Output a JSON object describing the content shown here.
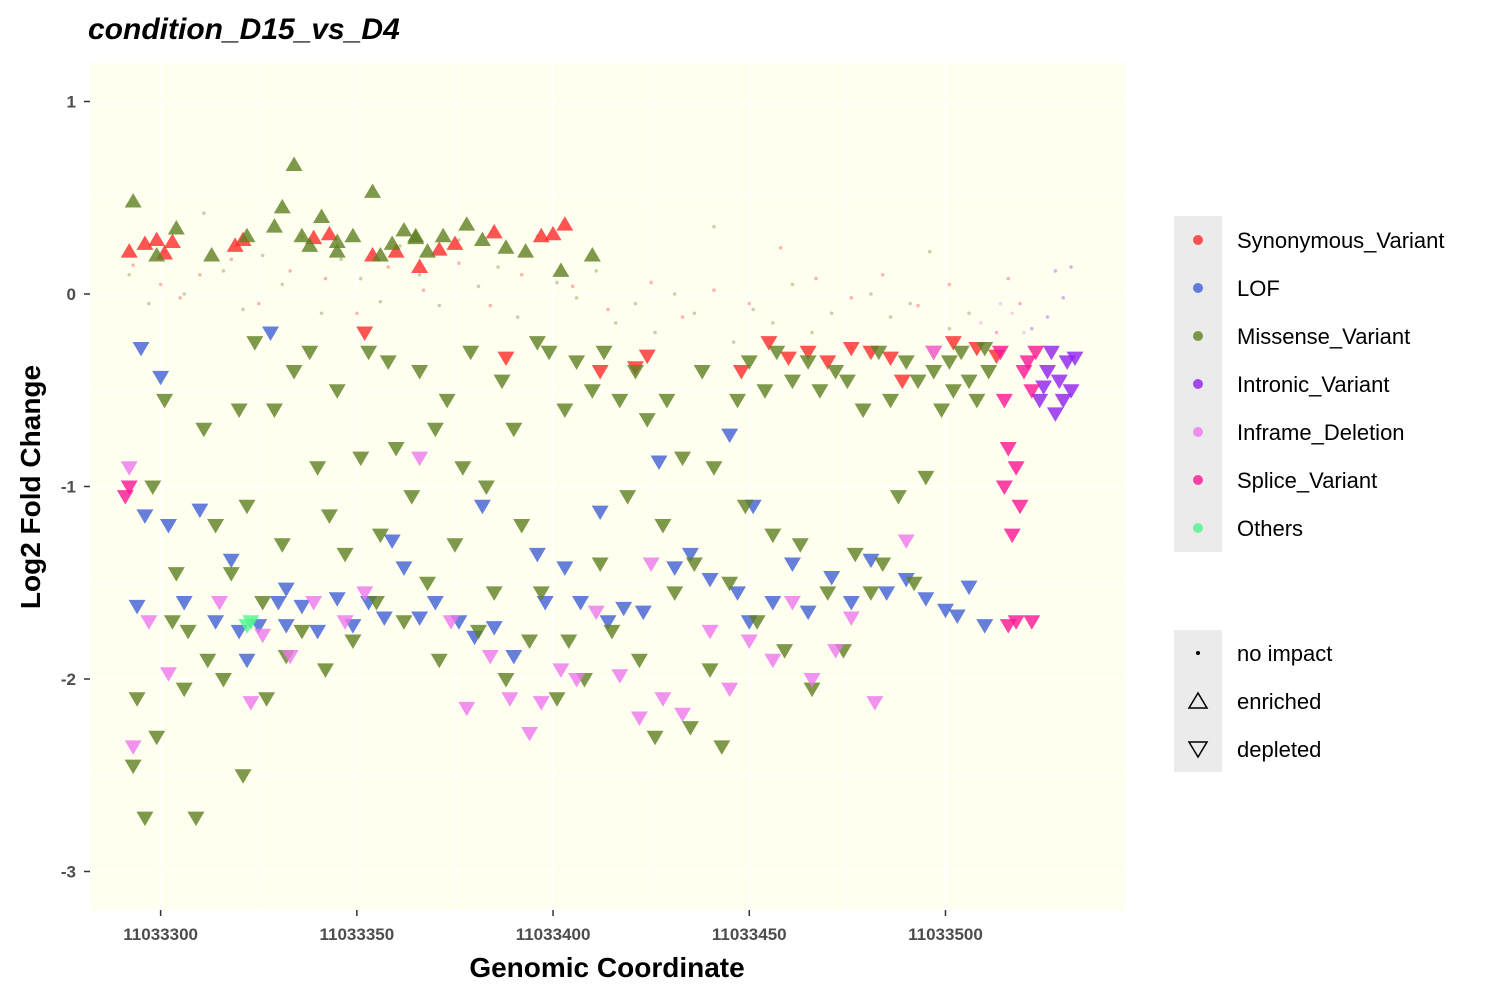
{
  "chart_data": {
    "type": "scatter",
    "title": "condition_D15_vs_D4",
    "xlabel": "Genomic Coordinate",
    "ylabel": "Log2 Fold Change",
    "xlim": [
      11033282,
      11033546
    ],
    "ylim": [
      -3.2,
      1.2
    ],
    "x_ticks": [
      11033300,
      11033350,
      11033400,
      11033450,
      11033500
    ],
    "y_ticks": [
      1,
      0,
      -1,
      -2,
      -3
    ],
    "grid": true,
    "panel_background": "#fffff0",
    "legend_position": "right",
    "categories": [
      {
        "name": "Synonymous_Variant",
        "color": "#ff2a2a"
      },
      {
        "name": "LOF",
        "color": "#3f5fd6"
      },
      {
        "name": "Missense_Variant",
        "color": "#5f7f22"
      },
      {
        "name": "Intronic_Variant",
        "color": "#8f1ff0"
      },
      {
        "name": "Inframe_Deletion",
        "color": "#ee78ee"
      },
      {
        "name": "Splice_Variant",
        "color": "#ff1493"
      },
      {
        "name": "Others",
        "color": "#4ff58f"
      }
    ],
    "shapes": [
      {
        "name": "no impact",
        "marker": "dot"
      },
      {
        "name": "enriched",
        "marker": "triangle-up"
      },
      {
        "name": "depleted",
        "marker": "triangle-down"
      }
    ],
    "series": [
      {
        "name": "Synonymous_Variant",
        "shape": "enriched",
        "x": [
          11033292,
          11033296,
          11033299,
          11033301,
          11033303,
          11033319,
          11033321,
          11033339,
          11033343,
          11033354,
          11033360,
          11033366,
          11033371,
          11033375,
          11033385,
          11033397,
          11033400,
          11033403
        ],
        "y": [
          0.22,
          0.26,
          0.28,
          0.21,
          0.27,
          0.25,
          0.28,
          0.29,
          0.31,
          0.2,
          0.22,
          0.14,
          0.23,
          0.26,
          0.32,
          0.3,
          0.31,
          0.36
        ]
      },
      {
        "name": "Synonymous_Variant",
        "shape": "depleted",
        "x": [
          11033352,
          11033388,
          11033412,
          11033421,
          11033424,
          11033448,
          11033455,
          11033460,
          11033465,
          11033470,
          11033476,
          11033481,
          11033486,
          11033489,
          11033497,
          11033502,
          11033508,
          11033513
        ],
        "y": [
          -0.2,
          -0.33,
          -0.4,
          -0.38,
          -0.32,
          -0.4,
          -0.25,
          -0.33,
          -0.3,
          -0.35,
          -0.28,
          -0.3,
          -0.33,
          -0.45,
          -0.3,
          -0.25,
          -0.28,
          -0.32
        ]
      },
      {
        "name": "Synonymous_Variant",
        "shape": "no impact",
        "x": [
          11033293,
          11033300,
          11033305,
          11033310,
          11033318,
          11033325,
          11033333,
          11033342,
          11033350,
          11033358,
          11033367,
          11033376,
          11033384,
          11033392,
          11033405,
          11033414,
          11033425,
          11033433,
          11033441,
          11033450,
          11033458,
          11033467,
          11033476,
          11033484,
          11033493,
          11033501
        ],
        "y": [
          0.15,
          0.05,
          -0.02,
          0.1,
          0.18,
          -0.05,
          0.12,
          0.08,
          -0.1,
          0.14,
          0.02,
          0.16,
          -0.06,
          0.1,
          0.04,
          -0.08,
          0.06,
          -0.12,
          0.02,
          -0.05,
          0.24,
          0.08,
          -0.02,
          0.1,
          -0.06,
          0.05
        ]
      },
      {
        "name": "LOF",
        "shape": "depleted",
        "x": [
          11033294,
          11033296,
          11033302,
          11033306,
          11033310,
          11033314,
          11033318,
          11033322,
          11033325,
          11033328,
          11033332,
          11033336,
          11033340,
          11033345,
          11033349,
          11033353,
          11033357,
          11033362,
          11033366,
          11033370,
          11033376,
          11033380,
          11033385,
          11033390,
          11033396,
          11033398,
          11033403,
          11033407,
          11033412,
          11033418,
          11033423,
          11033427,
          11033431,
          11033435,
          11033440,
          11033445,
          11033450,
          11033456,
          11033461,
          11033465,
          11033471,
          11033476,
          11033481,
          11033485,
          11033490,
          11033495,
          11033500,
          11033503,
          11033506,
          11033510,
          11033295,
          11033330,
          11033300,
          11033451,
          11033447,
          11033382,
          11033332,
          11033414,
          11033320,
          11033359
        ],
        "y": [
          -1.62,
          -1.15,
          -1.2,
          -1.6,
          -1.12,
          -1.7,
          -1.38,
          -1.9,
          -1.72,
          -0.2,
          -1.72,
          -1.62,
          -1.75,
          -1.58,
          -1.72,
          -1.6,
          -1.68,
          -1.42,
          -1.68,
          -1.6,
          -1.7,
          -1.78,
          -1.73,
          -1.88,
          -1.35,
          -1.6,
          -1.42,
          -1.6,
          -1.13,
          -1.63,
          -1.65,
          -0.87,
          -1.42,
          -1.35,
          -1.48,
          -0.73,
          -1.7,
          -1.6,
          -1.4,
          -1.65,
          -1.47,
          -1.6,
          -1.38,
          -1.55,
          -1.48,
          -1.58,
          -1.64,
          -1.67,
          -1.52,
          -1.72,
          -0.28,
          -1.6,
          -0.43,
          -1.1,
          -1.55,
          -1.1,
          -1.53,
          -1.7,
          -1.75,
          -1.28
        ]
      },
      {
        "name": "Missense_Variant",
        "shape": "enriched",
        "x": [
          11033293,
          11033299,
          11033304,
          11033313,
          11033322,
          11033331,
          11033334,
          11033336,
          11033338,
          11033341,
          11033345,
          11033349,
          11033354,
          11033356,
          11033359,
          11033362,
          11033365,
          11033368,
          11033372,
          11033378,
          11033382,
          11033388,
          11033393,
          11033402,
          11033410,
          11033329,
          11033345,
          11033365
        ],
        "y": [
          0.48,
          0.2,
          0.34,
          0.2,
          0.3,
          0.45,
          0.67,
          0.3,
          0.25,
          0.4,
          0.27,
          0.3,
          0.53,
          0.2,
          0.26,
          0.33,
          0.3,
          0.22,
          0.3,
          0.36,
          0.28,
          0.24,
          0.22,
          0.12,
          0.2,
          0.35,
          0.22,
          0.29
        ]
      },
      {
        "name": "Missense_Variant",
        "shape": "depleted",
        "x": [
          11033293,
          11033294,
          11033296,
          11033298,
          11033299,
          11033301,
          11033303,
          11033304,
          11033306,
          11033307,
          11033309,
          11033311,
          11033312,
          11033314,
          11033316,
          11033318,
          11033320,
          11033321,
          11033322,
          11033324,
          11033326,
          11033327,
          11033329,
          11033331,
          11033332,
          11033334,
          11033336,
          11033338,
          11033340,
          11033342,
          11033343,
          11033345,
          11033347,
          11033349,
          11033351,
          11033353,
          11033355,
          11033356,
          11033358,
          11033360,
          11033362,
          11033364,
          11033366,
          11033368,
          11033370,
          11033371,
          11033373,
          11033375,
          11033377,
          11033379,
          11033381,
          11033383,
          11033385,
          11033387,
          11033388,
          11033390,
          11033392,
          11033394,
          11033396,
          11033397,
          11033399,
          11033401,
          11033403,
          11033404,
          11033406,
          11033408,
          11033410,
          11033412,
          11033413,
          11033415,
          11033417,
          11033419,
          11033421,
          11033422,
          11033424,
          11033426,
          11033428,
          11033429,
          11033431,
          11033433,
          11033435,
          11033436,
          11033438,
          11033440,
          11033441,
          11033443,
          11033445,
          11033447,
          11033449,
          11033450,
          11033452,
          11033454,
          11033456,
          11033457,
          11033459,
          11033461,
          11033463,
          11033465,
          11033466,
          11033468,
          11033470,
          11033472,
          11033474,
          11033475,
          11033477,
          11033479,
          11033481,
          11033483,
          11033484,
          11033486,
          11033488,
          11033490,
          11033492,
          11033493,
          11033495,
          11033497,
          11033499,
          11033501,
          11033502,
          11033504,
          11033506,
          11033508,
          11033510,
          11033511
        ],
        "y": [
          -2.45,
          -2.1,
          -2.72,
          -1.0,
          -2.3,
          -0.55,
          -1.7,
          -1.45,
          -2.05,
          -1.75,
          -2.72,
          -0.7,
          -1.9,
          -1.2,
          -2.0,
          -1.45,
          -0.6,
          -2.5,
          -1.1,
          -0.25,
          -1.6,
          -2.1,
          -0.6,
          -1.3,
          -1.88,
          -0.4,
          -1.75,
          -0.3,
          -0.9,
          -1.95,
          -1.15,
          -0.5,
          -1.35,
          -1.8,
          -0.85,
          -0.3,
          -1.6,
          -1.25,
          -0.35,
          -0.8,
          -1.7,
          -1.05,
          -0.4,
          -1.5,
          -0.7,
          -1.9,
          -0.55,
          -1.3,
          -0.9,
          -0.3,
          -1.75,
          -1.0,
          -1.55,
          -0.45,
          -2.0,
          -0.7,
          -1.2,
          -1.8,
          -0.25,
          -1.55,
          -0.3,
          -2.1,
          -0.6,
          -1.8,
          -0.35,
          -2.0,
          -0.5,
          -1.4,
          -0.3,
          -1.75,
          -0.55,
          -1.05,
          -0.4,
          -1.9,
          -0.65,
          -2.3,
          -1.2,
          -0.55,
          -1.55,
          -0.85,
          -2.25,
          -1.4,
          -0.4,
          -1.95,
          -0.9,
          -2.35,
          -1.5,
          -0.55,
          -1.1,
          -0.35,
          -1.7,
          -0.5,
          -1.25,
          -0.3,
          -1.85,
          -0.45,
          -1.3,
          -0.35,
          -2.05,
          -0.5,
          -1.55,
          -0.4,
          -1.85,
          -0.45,
          -1.35,
          -0.6,
          -1.55,
          -0.3,
          -1.4,
          -0.55,
          -1.05,
          -0.35,
          -1.5,
          -0.45,
          -0.95,
          -0.4,
          -0.6,
          -0.35,
          -0.5,
          -0.3,
          -0.45,
          -0.55,
          -0.28,
          -0.4
        ]
      },
      {
        "name": "Missense_Variant",
        "shape": "no impact",
        "x": [
          11033292,
          11033297,
          11033301,
          11033306,
          11033311,
          11033316,
          11033321,
          11033326,
          11033331,
          11033336,
          11033341,
          11033346,
          11033351,
          11033356,
          11033361,
          11033366,
          11033371,
          11033376,
          11033381,
          11033386,
          11033391,
          11033396,
          11033401,
          11033406,
          11033411,
          11033416,
          11033421,
          11033426,
          11033431,
          11033436,
          11033441,
          11033446,
          11033451,
          11033456,
          11033461,
          11033466,
          11033471,
          11033476,
          11033481,
          11033486,
          11033491,
          11033496,
          11033501,
          11033506
        ],
        "y": [
          0.1,
          -0.05,
          0.22,
          0.0,
          0.42,
          0.12,
          -0.08,
          0.2,
          0.05,
          0.3,
          -0.1,
          0.18,
          0.08,
          -0.04,
          0.25,
          0.1,
          -0.06,
          0.28,
          0.04,
          0.14,
          -0.12,
          0.3,
          0.06,
          -0.02,
          0.12,
          -0.15,
          -0.05,
          -0.2,
          0.0,
          -0.1,
          0.35,
          -0.25,
          -0.08,
          -0.15,
          0.05,
          -0.2,
          -0.1,
          -0.28,
          0.0,
          -0.12,
          -0.05,
          0.22,
          -0.18,
          -0.1
        ]
      },
      {
        "name": "Intronic_Variant",
        "shape": "depleted",
        "x": [
          11033524,
          11033526,
          11033527,
          11033529,
          11033530,
          11033531,
          11033532,
          11033533,
          11033528,
          11033525
        ],
        "y": [
          -0.55,
          -0.4,
          -0.3,
          -0.45,
          -0.55,
          -0.35,
          -0.5,
          -0.33,
          -0.62,
          -0.48
        ]
      },
      {
        "name": "Intronic_Variant",
        "shape": "no impact",
        "x": [
          11033526,
          11033528,
          11033530,
          11033532,
          11033522
        ],
        "y": [
          -0.12,
          0.12,
          -0.02,
          0.14,
          -0.18
        ]
      },
      {
        "name": "Inframe_Deletion",
        "shape": "depleted",
        "x": [
          11033292,
          11033293,
          11033297,
          11033302,
          11033315,
          11033323,
          11033326,
          11033333,
          11033339,
          11033347,
          11033352,
          11033366,
          11033374,
          11033378,
          11033384,
          11033389,
          11033394,
          11033397,
          11033402,
          11033406,
          11033411,
          11033417,
          11033422,
          11033425,
          11033428,
          11033433,
          11033440,
          11033445,
          11033450,
          11033456,
          11033461,
          11033466,
          11033472,
          11033476,
          11033482,
          11033490,
          11033497
        ],
        "y": [
          -0.9,
          -2.35,
          -1.7,
          -1.97,
          -1.6,
          -2.12,
          -1.77,
          -1.88,
          -1.6,
          -1.7,
          -1.55,
          -0.85,
          -1.7,
          -2.15,
          -1.88,
          -2.1,
          -2.28,
          -2.12,
          -1.95,
          -2.0,
          -1.65,
          -1.98,
          -2.2,
          -1.4,
          -2.1,
          -2.18,
          -1.75,
          -2.05,
          -1.8,
          -1.9,
          -1.6,
          -2.0,
          -1.85,
          -1.68,
          -2.12,
          -1.28,
          -0.3
        ]
      },
      {
        "name": "Inframe_Deletion",
        "shape": "no impact",
        "x": [
          11033509,
          11033514,
          11033517,
          11033520
        ],
        "y": [
          -0.15,
          -0.05,
          -0.1,
          -0.2
        ]
      },
      {
        "name": "Splice_Variant",
        "shape": "depleted",
        "x": [
          11033291,
          11033292,
          11033514,
          11033515,
          11033516,
          11033517,
          11033518,
          11033519,
          11033520,
          11033521,
          11033522,
          11033523,
          11033516,
          11033515,
          11033518,
          11033522
        ],
        "y": [
          -1.05,
          -1.0,
          -0.3,
          -0.55,
          -0.8,
          -1.25,
          -0.9,
          -1.1,
          -0.4,
          -0.35,
          -0.5,
          -0.3,
          -1.72,
          -1.0,
          -1.7,
          -1.7
        ]
      },
      {
        "name": "Splice_Variant",
        "shape": "no impact",
        "x": [
          11033513,
          11033516,
          11033519
        ],
        "y": [
          -0.2,
          0.08,
          -0.05
        ]
      },
      {
        "name": "Others",
        "shape": "depleted",
        "x": [
          11033322,
          11033323
        ],
        "y": [
          -1.72,
          -1.7
        ]
      }
    ]
  }
}
